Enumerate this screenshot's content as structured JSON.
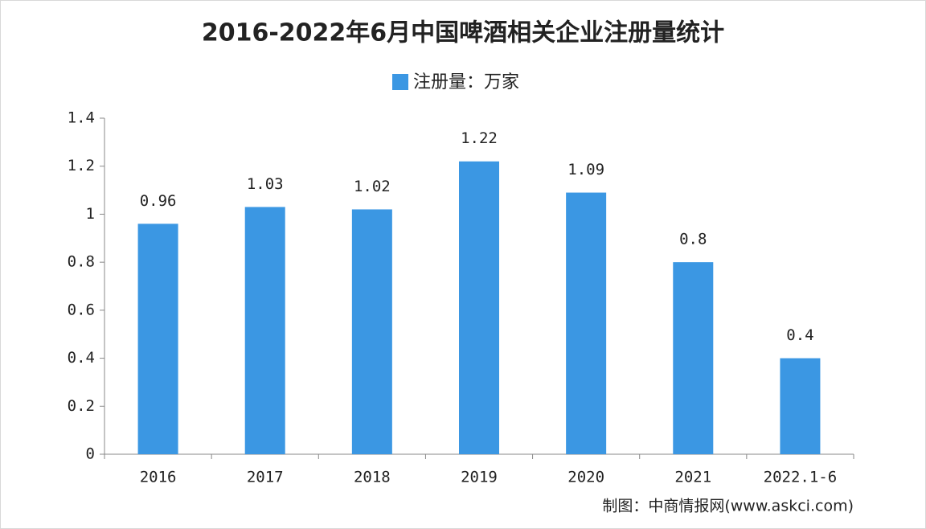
{
  "chart_data": {
    "type": "bar",
    "title": "2016-2022年6月中国啤酒相关企业注册量统计",
    "categories": [
      "2016",
      "2017",
      "2018",
      "2019",
      "2020",
      "2021",
      "2022.1-6"
    ],
    "series": [
      {
        "name": "注册量：万家",
        "color": "#3b97e3",
        "values": [
          0.96,
          1.03,
          1.02,
          1.22,
          1.09,
          0.8,
          0.4
        ]
      }
    ],
    "ylim": [
      0,
      1.4
    ],
    "yticks": [
      0,
      0.2,
      0.4,
      0.6,
      0.8,
      1,
      1.2,
      1.4
    ],
    "grid": false,
    "legend": "top",
    "source": "制图：中商情报网(www.askci.com)"
  }
}
